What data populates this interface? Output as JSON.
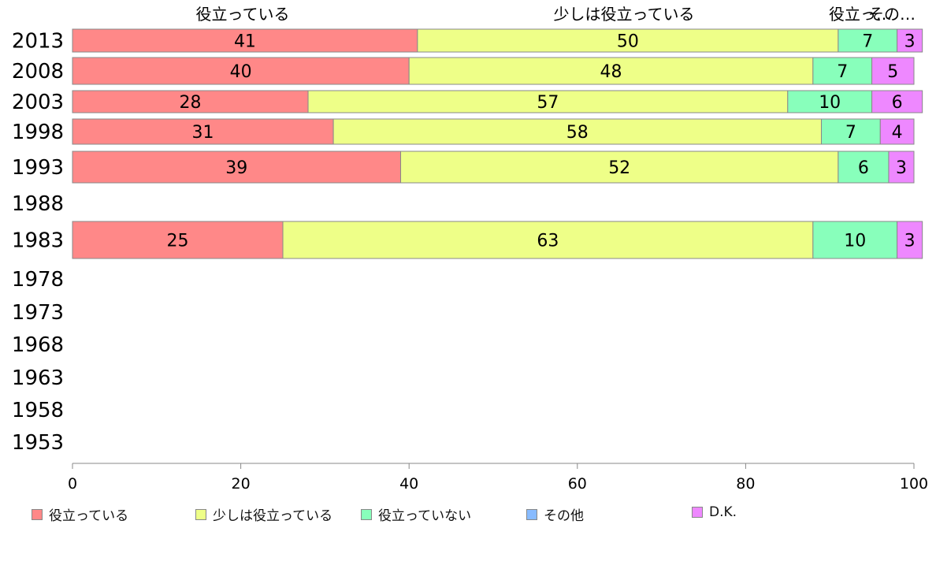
{
  "chart_data": {
    "type": "bar",
    "orientation": "horizontal",
    "stacked": true,
    "categories": [
      "2013",
      "2008",
      "2003",
      "1998",
      "1993",
      "1988",
      "1983",
      "1978",
      "1973",
      "1968",
      "1963",
      "1958",
      "1953"
    ],
    "series": [
      {
        "name": "役立っている",
        "color": "#ff8888",
        "values": [
          41,
          40,
          28,
          31,
          39,
          null,
          25,
          null,
          null,
          null,
          null,
          null,
          null
        ]
      },
      {
        "name": "少しは役立っている",
        "color": "#eeff88",
        "values": [
          50,
          48,
          57,
          58,
          52,
          null,
          63,
          null,
          null,
          null,
          null,
          null,
          null
        ]
      },
      {
        "name": "役立っていない",
        "color": "#88ffbb",
        "values": [
          7,
          7,
          10,
          7,
          6,
          null,
          10,
          null,
          null,
          null,
          null,
          null,
          null
        ]
      },
      {
        "name": "その他",
        "color": "#88bbff",
        "values": [
          0,
          0,
          0,
          0,
          0,
          null,
          0,
          null,
          null,
          null,
          null,
          null,
          null
        ]
      },
      {
        "name": "D.K.",
        "color": "#ee88ff",
        "values": [
          3,
          5,
          6,
          4,
          3,
          null,
          3,
          null,
          null,
          null,
          null,
          null,
          null
        ]
      }
    ],
    "top_labels": [
      "役立っている",
      "少しは役立っている",
      "役立っ…",
      "その…"
    ],
    "xlim": [
      0,
      100
    ],
    "xticks": [
      0,
      20,
      40,
      60,
      80,
      100
    ],
    "grid": false,
    "legend_position": "bottom"
  }
}
